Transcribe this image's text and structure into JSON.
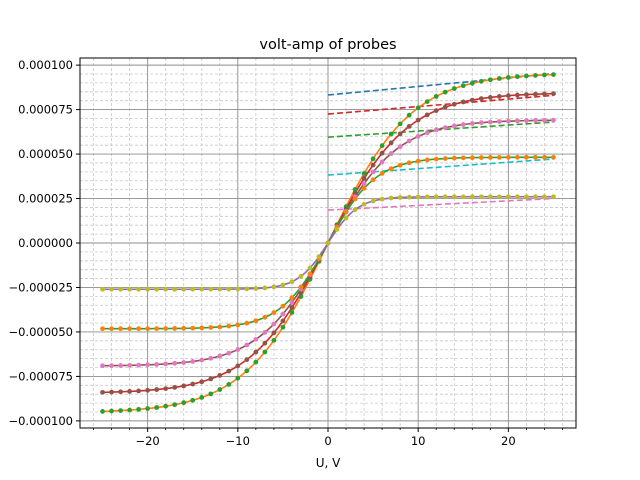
{
  "chart_data": {
    "type": "line",
    "title": "volt-amp of probes",
    "xlabel": "U, V",
    "ylabel": "",
    "xlim": [
      -27.5,
      27.5
    ],
    "ylim": [
      -0.000104,
      0.000104
    ],
    "x_ticks": [
      -20,
      -10,
      0,
      10,
      20
    ],
    "x_tick_labels": [
      "−20",
      "−10",
      "0",
      "10",
      "20"
    ],
    "y_ticks": [
      -0.0001,
      -7.5e-05,
      -5e-05,
      -2.5e-05,
      0,
      2.5e-05,
      5e-05,
      7.5e-05,
      0.0001
    ],
    "y_tick_labels": [
      "−0.000100",
      "−0.000075",
      "−0.000050",
      "−0.000025",
      "0.000000",
      "0.000025",
      "0.000050",
      "0.000075",
      "0.000100"
    ],
    "grid": true,
    "minor_grid": true,
    "legend": false,
    "probes": [
      {
        "saturation": 9.55e-05,
        "width": 9.2,
        "fit_color": "#ff7f0e",
        "point_color": "#2ca02c",
        "asym_color": "#1f77b4",
        "asym_intercept": 8.32e-05,
        "asym_slope": 4.8e-07
      },
      {
        "saturation": 8.45e-05,
        "width": 8.7,
        "fit_color": "#d62728",
        "point_color": "#8c564b",
        "asym_color": "#d62728",
        "asym_intercept": 7.25e-05,
        "asym_slope": 4.2e-07
      },
      {
        "saturation": 6.92e-05,
        "width": 7.6,
        "fit_color": "#8c564b",
        "point_color": "#e377c2",
        "asym_color": "#2ca02c",
        "asym_intercept": 5.95e-05,
        "asym_slope": 3.4e-07
      },
      {
        "saturation": 4.82e-05,
        "width": 5.3,
        "fit_color": "#2ca02c",
        "point_color": "#ff7f0e",
        "asym_color": "#17becf",
        "asym_intercept": 3.82e-05,
        "asym_slope": 3.6e-07
      },
      {
        "saturation": 2.6e-05,
        "width": 3.3,
        "fit_color": "#9467bd",
        "point_color": "#bcbd22",
        "asym_color": "#e377c2",
        "asym_intercept": 1.85e-05,
        "asym_slope": 2.6e-07
      }
    ],
    "x_points_range": [
      -25,
      25
    ],
    "x_points_step": 1
  }
}
